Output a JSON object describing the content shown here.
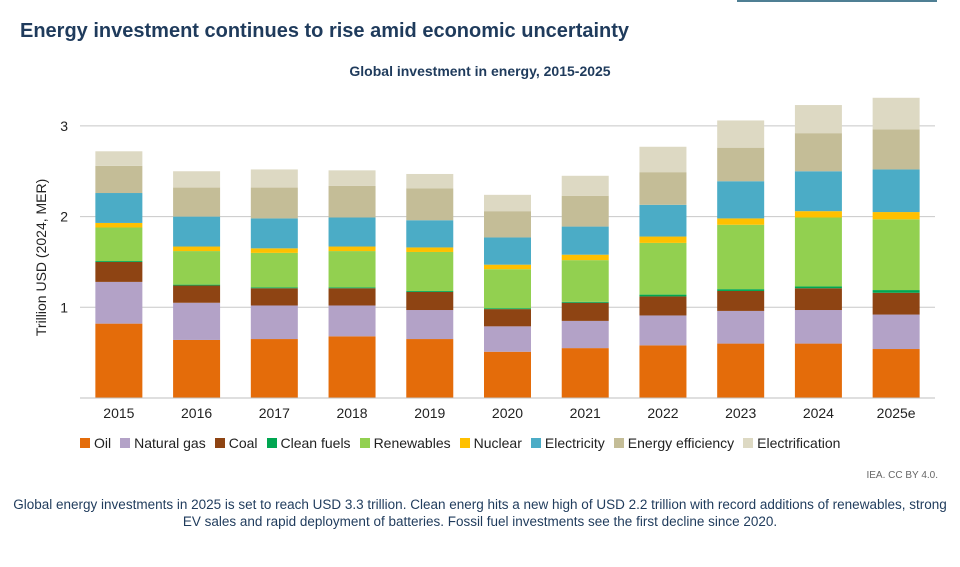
{
  "page": {
    "title": "Energy investment continues to rise amid economic uncertainty",
    "credit": "IEA. CC BY 4.0.",
    "footnote": "Global energy investments in 2025 is set to reach USD 3.3 trillion. Clean energ hits a new high of USD 2.2 trillion with record additions of renewables, strong EV sales and rapid deployment of batteries. Fossil fuel investments see the first decline since 2020."
  },
  "chart_data": {
    "type": "bar",
    "stacked": true,
    "title": "Global investment in energy, 2015-2025",
    "xlabel": "",
    "ylabel": "Trillion USD (2024, MER)",
    "ylim": [
      0,
      3.3
    ],
    "yticks": [
      1,
      2,
      3
    ],
    "grid": true,
    "legend_position": "bottom",
    "categories": [
      "2015",
      "2016",
      "2017",
      "2018",
      "2019",
      "2020",
      "2021",
      "2022",
      "2023",
      "2024",
      "2025e"
    ],
    "series": [
      {
        "name": "Oil",
        "color": "#e46c0a",
        "values": [
          0.82,
          0.64,
          0.65,
          0.68,
          0.65,
          0.51,
          0.55,
          0.58,
          0.6,
          0.6,
          0.54
        ]
      },
      {
        "name": "Natural gas",
        "color": "#b3a2c7",
        "values": [
          0.46,
          0.41,
          0.37,
          0.34,
          0.32,
          0.28,
          0.3,
          0.33,
          0.36,
          0.37,
          0.38
        ]
      },
      {
        "name": "Coal",
        "color": "#8e4413",
        "values": [
          0.22,
          0.19,
          0.19,
          0.19,
          0.2,
          0.19,
          0.2,
          0.21,
          0.22,
          0.24,
          0.24
        ]
      },
      {
        "name": "Clean fuels",
        "color": "#00a651",
        "values": [
          0.01,
          0.01,
          0.01,
          0.01,
          0.01,
          0.01,
          0.01,
          0.02,
          0.02,
          0.02,
          0.03
        ]
      },
      {
        "name": "Renewables",
        "color": "#92d050",
        "values": [
          0.37,
          0.37,
          0.38,
          0.4,
          0.43,
          0.43,
          0.46,
          0.57,
          0.71,
          0.76,
          0.78
        ]
      },
      {
        "name": "Nuclear",
        "color": "#ffc000",
        "values": [
          0.05,
          0.05,
          0.05,
          0.05,
          0.05,
          0.05,
          0.06,
          0.07,
          0.07,
          0.07,
          0.08
        ]
      },
      {
        "name": "Electricity",
        "color": "#4bacc6",
        "values": [
          0.33,
          0.33,
          0.33,
          0.32,
          0.3,
          0.3,
          0.31,
          0.35,
          0.41,
          0.44,
          0.47
        ]
      },
      {
        "name": "Energy efficiency",
        "color": "#c4bd97",
        "values": [
          0.3,
          0.32,
          0.34,
          0.35,
          0.35,
          0.29,
          0.34,
          0.36,
          0.37,
          0.42,
          0.44
        ]
      },
      {
        "name": "Electrification",
        "color": "#ddd9c3",
        "values": [
          0.16,
          0.18,
          0.2,
          0.17,
          0.16,
          0.18,
          0.22,
          0.28,
          0.3,
          0.31,
          0.35
        ]
      }
    ]
  }
}
